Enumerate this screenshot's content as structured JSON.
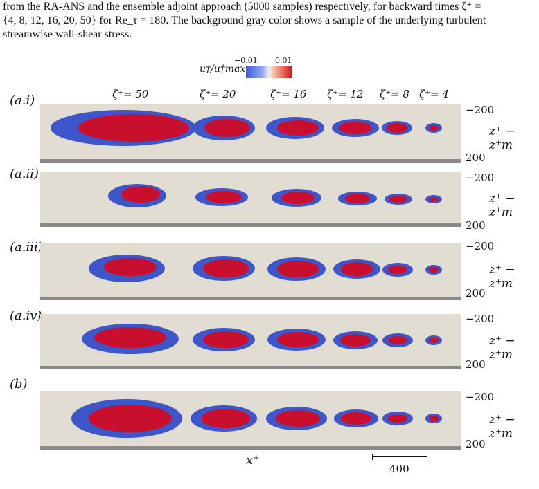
{
  "caption": {
    "line1": "from the RA-ANS and the ensemble adjoint approach (5000 samples) respectively, for backward times ζ⁺ =",
    "line2": "{4, 8, 12, 16, 20, 50} for Re_τ = 180. The background gray color shows a sample of the underlying turbulent",
    "line3": "streamwise wall-shear stress."
  },
  "colorbar": {
    "label": "u†/u†max",
    "min_label": "−0.01",
    "max_label": "0.01",
    "colors": [
      "#3b5bdb",
      "#f4efe9",
      "#d1121e"
    ]
  },
  "zeta_labels": [
    "ζ⁺= 50",
    "ζ⁺= 20",
    "ζ⁺= 16",
    "ζ⁺= 12",
    "ζ⁺= 8",
    "ζ⁺= 4"
  ],
  "panels": [
    {
      "label": "(a.i)",
      "ytop": "−200",
      "ybottom": "200",
      "ylabel": "z⁺ − z⁺m"
    },
    {
      "label": "(a.ii)",
      "ytop": "−200",
      "ybottom": "200",
      "ylabel": "z⁺ − z⁺m"
    },
    {
      "label": "(a.iii)",
      "ytop": "−200",
      "ybottom": "200",
      "ylabel": "z⁺ − z⁺m"
    },
    {
      "label": "(a.iv)",
      "ytop": "−200",
      "ybottom": "200",
      "ylabel": "z⁺ − z⁺m"
    },
    {
      "label": "(b)",
      "ytop": "−200",
      "ybottom": "200",
      "ylabel": "z⁺ − z⁺m"
    }
  ],
  "xlabel": "x⁺",
  "scale_label": "400",
  "colors": {
    "background_strip": "#e2ddd3",
    "floor": "#8a8a8a",
    "blue": "#3d56c9",
    "red": "#c8102e"
  }
}
